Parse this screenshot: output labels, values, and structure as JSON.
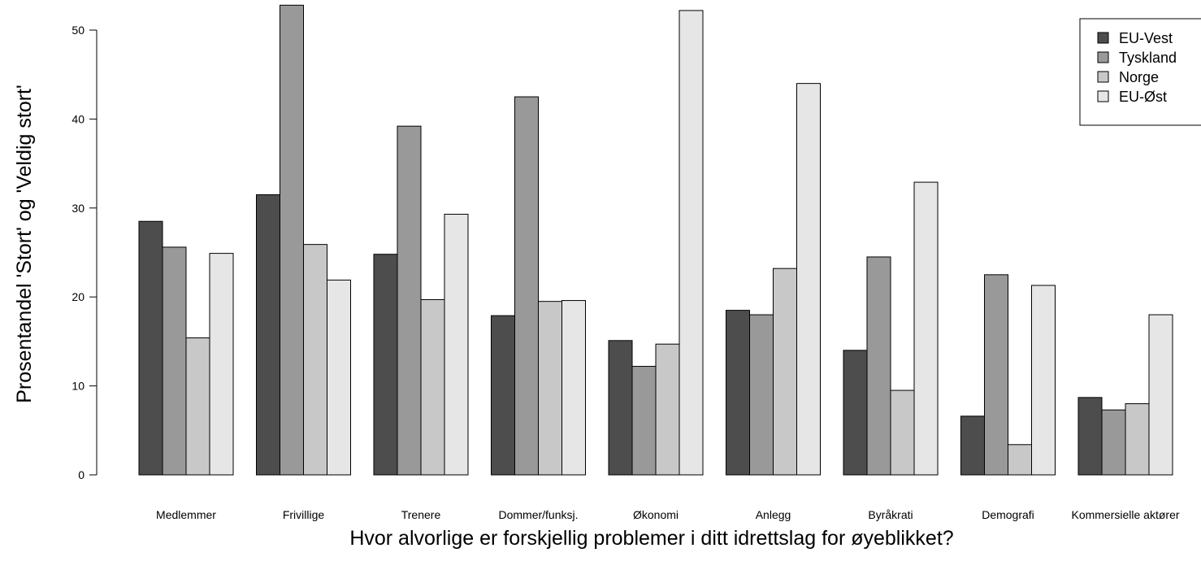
{
  "chart_data": {
    "type": "bar",
    "title": "",
    "xlabel": "Hvor alvorlige er forskjellig problemer i ditt idrettslag for øyeblikket?",
    "ylabel": "Prosentandel 'Stort' og 'Veldig stort'",
    "ylim": [
      0,
      50
    ],
    "yticks": [
      0,
      10,
      20,
      30,
      40,
      50
    ],
    "grid": false,
    "legend_position": "top-right",
    "categories": [
      "Medlemmer",
      "Frivillige",
      "Trenere",
      "Dommer/funksj.",
      "Økonomi",
      "Anlegg",
      "Byråkrati",
      "Demografi",
      "Kommersielle aktører"
    ],
    "series": [
      {
        "name": "EU-Vest",
        "color": "#4d4d4d",
        "values": [
          28.5,
          31.5,
          24.8,
          17.9,
          15.1,
          18.5,
          14.0,
          6.6,
          8.7
        ]
      },
      {
        "name": "Tyskland",
        "color": "#999999",
        "values": [
          25.6,
          52.8,
          39.2,
          42.5,
          12.2,
          18.0,
          24.5,
          22.5,
          7.3
        ]
      },
      {
        "name": "Norge",
        "color": "#c8c8c8",
        "values": [
          15.4,
          25.9,
          19.7,
          19.5,
          14.7,
          23.2,
          9.5,
          3.4,
          8.0
        ]
      },
      {
        "name": "EU-Øst",
        "color": "#e6e6e6",
        "values": [
          24.9,
          21.9,
          29.3,
          19.6,
          52.2,
          44.0,
          32.9,
          21.3,
          18.0
        ]
      }
    ]
  }
}
